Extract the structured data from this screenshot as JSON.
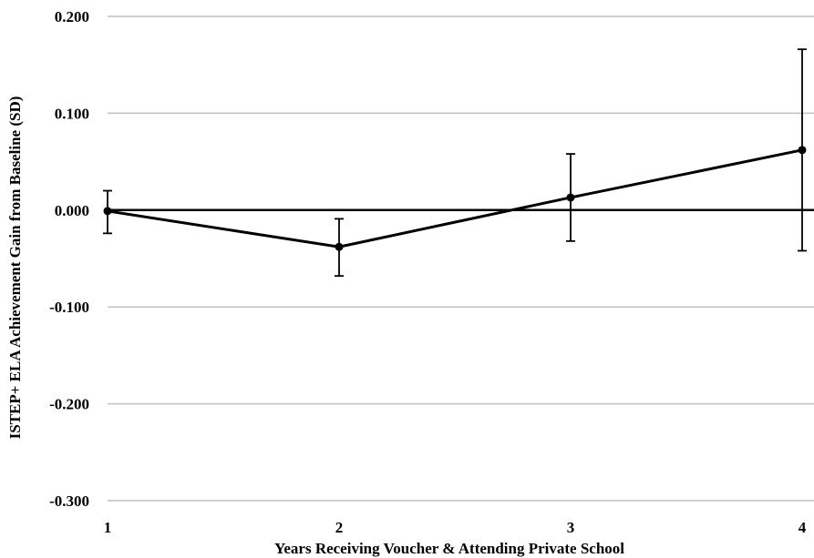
{
  "chart_data": {
    "type": "line",
    "title": "",
    "xlabel": "Years Receiving Voucher & Attending  Private School",
    "ylabel": "ISTEP+ ELA Achievement Gain from Baseline (SD)",
    "x": [
      1,
      2,
      3,
      4
    ],
    "x_tick_labels": [
      "1",
      "2",
      "3",
      "4"
    ],
    "y_tick_labels": [
      "0.200",
      "0.100",
      "0.000",
      "-0.100",
      "-0.200",
      "-0.300"
    ],
    "y_ticks": [
      0.2,
      0.1,
      0.0,
      -0.1,
      -0.2,
      -0.3
    ],
    "ylim": [
      -0.3,
      0.2
    ],
    "xlim": [
      1,
      4
    ],
    "grid": true,
    "series": [
      {
        "name": "",
        "values": [
          -0.001,
          -0.038,
          0.013,
          0.062
        ],
        "error_low": [
          -0.024,
          -0.068,
          -0.032,
          -0.042
        ],
        "error_high": [
          0.02,
          -0.009,
          0.058,
          0.166
        ]
      }
    ],
    "colors": {
      "line": "#000000",
      "grid": "#c0c0c0",
      "zero_line": "#000000"
    }
  }
}
